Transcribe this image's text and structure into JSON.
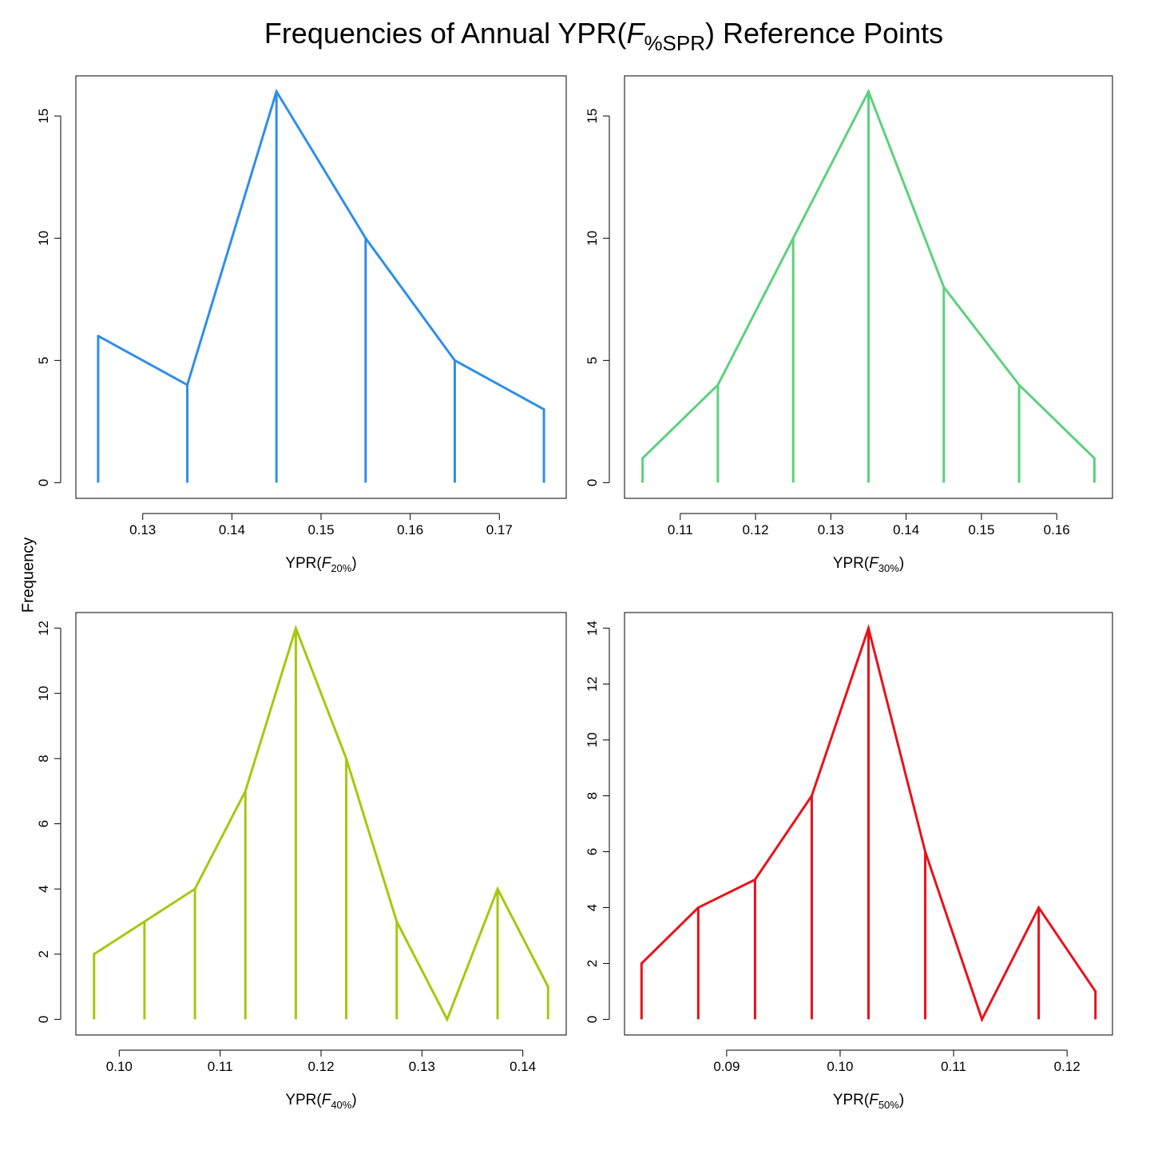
{
  "title": {
    "prefix": "Frequencies of Annual YPR(",
    "italic": "F",
    "subscript": "%SPR",
    "suffix": ") Reference Points"
  },
  "ylabel": "Frequency",
  "chart_data": [
    {
      "type": "line",
      "xlabel": {
        "prefix": "YPR(",
        "italic": "F",
        "subscript": "20%",
        "suffix": ")"
      },
      "color": "#2E8FE8",
      "x": [
        0.125,
        0.135,
        0.145,
        0.155,
        0.165,
        0.175
      ],
      "y": [
        6,
        4,
        16,
        10,
        5,
        3
      ],
      "xlim": [
        0.1225,
        0.1775
      ],
      "ylim": [
        -0.64,
        16.64
      ],
      "xticks": [
        0.13,
        0.14,
        0.15,
        0.16,
        0.17
      ],
      "xtick_labels": [
        "0.13",
        "0.14",
        "0.15",
        "0.16",
        "0.17"
      ],
      "yticks": [
        0,
        5,
        10,
        15
      ],
      "ytick_labels": [
        "0",
        "5",
        "10",
        "15"
      ],
      "drops": true
    },
    {
      "type": "line",
      "xlabel": {
        "prefix": "YPR(",
        "italic": "F",
        "subscript": "30%",
        "suffix": ")"
      },
      "color": "#5CD17D",
      "x": [
        0.105,
        0.115,
        0.125,
        0.135,
        0.145,
        0.155,
        0.165
      ],
      "y": [
        1,
        4,
        10,
        16,
        8,
        4,
        1
      ],
      "xlim": [
        0.1026,
        0.1674
      ],
      "ylim": [
        -0.64,
        16.64
      ],
      "xticks": [
        0.11,
        0.12,
        0.13,
        0.14,
        0.15,
        0.16
      ],
      "xtick_labels": [
        "0.11",
        "0.12",
        "0.13",
        "0.14",
        "0.15",
        "0.16"
      ],
      "yticks": [
        0,
        5,
        10,
        15
      ],
      "ytick_labels": [
        "0",
        "5",
        "10",
        "15"
      ],
      "drops": true
    },
    {
      "type": "line",
      "xlabel": {
        "prefix": "YPR(",
        "italic": "F",
        "subscript": "40%",
        "suffix": ")"
      },
      "color": "#A8C70D",
      "x": [
        0.0975,
        0.1025,
        0.1075,
        0.1125,
        0.1175,
        0.1225,
        0.1275,
        0.1325,
        0.1375,
        0.1425
      ],
      "y": [
        2,
        3,
        4,
        7,
        12,
        8,
        3,
        0,
        4,
        1
      ],
      "xlim": [
        0.0957,
        0.1443
      ],
      "ylim": [
        -0.48,
        12.48
      ],
      "xticks": [
        0.1,
        0.11,
        0.12,
        0.13,
        0.14
      ],
      "xtick_labels": [
        "0.10",
        "0.11",
        "0.12",
        "0.13",
        "0.14"
      ],
      "yticks": [
        0,
        2,
        4,
        6,
        8,
        10,
        12
      ],
      "ytick_labels": [
        "0",
        "2",
        "4",
        "6",
        "8",
        "10",
        "12"
      ],
      "drops": true
    },
    {
      "type": "line",
      "xlabel": {
        "prefix": "YPR(",
        "italic": "F",
        "subscript": "50%",
        "suffix": ")"
      },
      "color": "#E8121A",
      "x": [
        0.0825,
        0.0875,
        0.0925,
        0.0975,
        0.1025,
        0.1075,
        0.1125,
        0.1175,
        0.1225
      ],
      "y": [
        2,
        4,
        5,
        8,
        14,
        6,
        0,
        4,
        1
      ],
      "xlim": [
        0.081,
        0.124
      ],
      "ylim": [
        -0.56,
        14.56
      ],
      "xticks": [
        0.09,
        0.1,
        0.11,
        0.12
      ],
      "xtick_labels": [
        "0.09",
        "0.10",
        "0.11",
        "0.12"
      ],
      "yticks": [
        0,
        2,
        4,
        6,
        8,
        10,
        12,
        14
      ],
      "ytick_labels": [
        "0",
        "2",
        "4",
        "6",
        "8",
        "10",
        "12",
        "14"
      ],
      "drops": true
    }
  ]
}
